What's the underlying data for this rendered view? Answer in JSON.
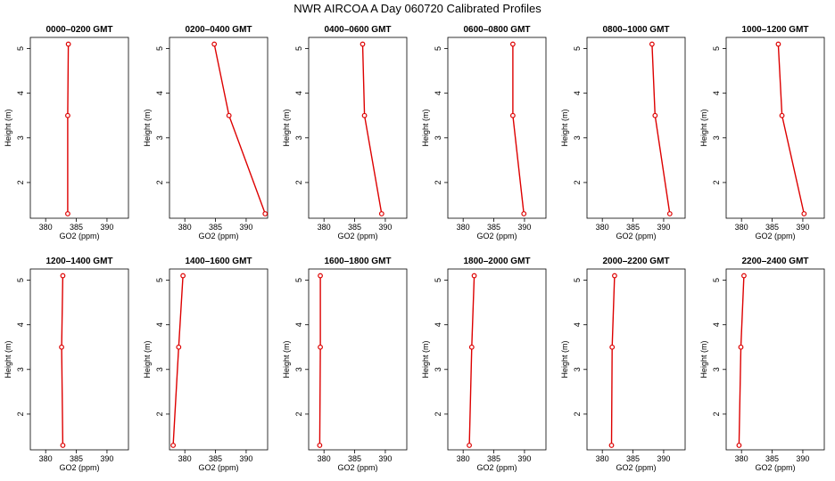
{
  "title": "NWR AIRCOA A  Day 060720  Calibrated Profiles",
  "colors": {
    "line": "#dd0000",
    "marker": "#dd0000",
    "frame": "#000000"
  },
  "chart_data": {
    "type": "line",
    "layout": "2 rows x 6 columns of small multiples",
    "xlabel": "GO2 (ppm)",
    "ylabel": "Height (m)",
    "xlim": [
      377.5,
      393.5
    ],
    "ylim": [
      1.2,
      5.25
    ],
    "xticks": [
      380,
      385,
      390
    ],
    "yticks": [
      2,
      3,
      4,
      5
    ],
    "heights": [
      1.3,
      3.5,
      5.1
    ],
    "panels": [
      {
        "title": "0000–0200 GMT",
        "co2": [
          383.6,
          383.6,
          383.7
        ]
      },
      {
        "title": "0200–0400 GMT",
        "co2": [
          393.1,
          387.2,
          384.8
        ]
      },
      {
        "title": "0400–0600 GMT",
        "co2": [
          389.4,
          386.6,
          386.3
        ]
      },
      {
        "title": "0600–0800 GMT",
        "co2": [
          389.9,
          388.1,
          388.1
        ]
      },
      {
        "title": "0800–1000 GMT",
        "co2": [
          391.0,
          388.6,
          388.1
        ]
      },
      {
        "title": "1000–1200 GMT",
        "co2": [
          390.2,
          386.6,
          386.0
        ]
      },
      {
        "title": "1200–1400 GMT",
        "co2": [
          382.8,
          382.6,
          382.8
        ]
      },
      {
        "title": "1400–1600 GMT",
        "co2": [
          378.1,
          379.0,
          379.7
        ]
      },
      {
        "title": "1600–1800 GMT",
        "co2": [
          379.3,
          379.4,
          379.4
        ]
      },
      {
        "title": "1800–2000 GMT",
        "co2": [
          381.0,
          381.4,
          381.8
        ]
      },
      {
        "title": "2000–2200 GMT",
        "co2": [
          381.5,
          381.6,
          382.0
        ]
      },
      {
        "title": "2200–2400 GMT",
        "co2": [
          379.6,
          379.9,
          380.4
        ]
      }
    ]
  }
}
